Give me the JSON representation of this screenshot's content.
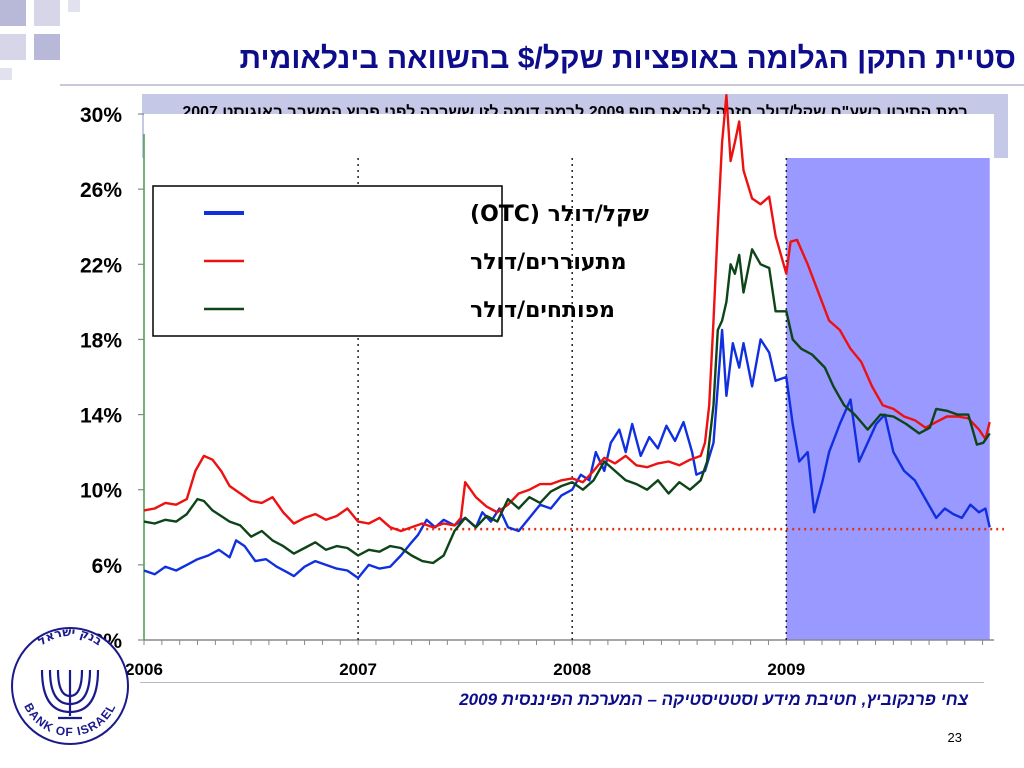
{
  "slide": {
    "title": "סטיית התקן הגלומה באופציות שקל/$ בהשוואה בינלאומית",
    "subtitle": "רמת הסיכון בשע\"ח שקל/דולר חזרה לקראת סוף 2009 לרמה דומה לזו ששררה לפני פרוץ המשבר באוגוסט 2007",
    "footer": "צחי פרנקוביץ, חטיבת מידע וסטטיסטיקה – המערכת הפיננסית 2009",
    "page_number": "23",
    "logo": {
      "text": "BANK OF ISRAEL",
      "text_he": "בנק ישראל",
      "icon": "menorah-icon"
    }
  },
  "colors": {
    "title": "#0d0d8c",
    "subtitle_bg": "#c6c8e8",
    "highlight": "#9999ff",
    "shekel_dollar": "#1030e0",
    "emerging": "#ee1111",
    "developed": "#0d4418",
    "reference_line": "#dd3311"
  },
  "chart_data": {
    "type": "line",
    "xlabel": "",
    "ylabel": "",
    "x_ticks": [
      "2006",
      "2007",
      "2008",
      "2009"
    ],
    "y_ticks": [
      "2%",
      "6%",
      "10%",
      "14%",
      "18%",
      "22%",
      "26%",
      "30%"
    ],
    "ylim": [
      2,
      30
    ],
    "xlim": [
      2006.0,
      2009.97
    ],
    "y_unit": "%",
    "grid": false,
    "vertical_markers": [
      2007.0,
      2008.0,
      2009.0
    ],
    "highlight_region": [
      2009.0,
      2009.95
    ],
    "reference_line": {
      "y": 7.9,
      "from_x": 2007.15,
      "style": "dotted"
    },
    "legend": {
      "position": "top-left"
    },
    "series": [
      {
        "name": "שקל/דולר (OTC)",
        "color": "#1030e0",
        "points": [
          [
            2006.0,
            5.7
          ],
          [
            2006.05,
            5.5
          ],
          [
            2006.1,
            5.9
          ],
          [
            2006.15,
            5.7
          ],
          [
            2006.2,
            6.0
          ],
          [
            2006.25,
            6.3
          ],
          [
            2006.3,
            6.5
          ],
          [
            2006.35,
            6.8
          ],
          [
            2006.4,
            6.4
          ],
          [
            2006.43,
            7.3
          ],
          [
            2006.47,
            7.0
          ],
          [
            2006.52,
            6.2
          ],
          [
            2006.57,
            6.3
          ],
          [
            2006.62,
            5.9
          ],
          [
            2006.67,
            5.6
          ],
          [
            2006.7,
            5.4
          ],
          [
            2006.75,
            5.9
          ],
          [
            2006.8,
            6.2
          ],
          [
            2006.85,
            6.0
          ],
          [
            2006.9,
            5.8
          ],
          [
            2006.95,
            5.7
          ],
          [
            2007.0,
            5.3
          ],
          [
            2007.05,
            6.0
          ],
          [
            2007.1,
            5.8
          ],
          [
            2007.15,
            5.9
          ],
          [
            2007.2,
            6.5
          ],
          [
            2007.25,
            7.2
          ],
          [
            2007.28,
            7.6
          ],
          [
            2007.32,
            8.4
          ],
          [
            2007.36,
            8.0
          ],
          [
            2007.4,
            8.4
          ],
          [
            2007.45,
            8.1
          ],
          [
            2007.5,
            8.5
          ],
          [
            2007.55,
            8.0
          ],
          [
            2007.58,
            8.8
          ],
          [
            2007.62,
            8.3
          ],
          [
            2007.66,
            9.0
          ],
          [
            2007.7,
            8.0
          ],
          [
            2007.75,
            7.8
          ],
          [
            2007.8,
            8.5
          ],
          [
            2007.85,
            9.2
          ],
          [
            2007.9,
            9.0
          ],
          [
            2007.95,
            9.7
          ],
          [
            2008.0,
            10.0
          ],
          [
            2008.04,
            10.8
          ],
          [
            2008.08,
            10.5
          ],
          [
            2008.11,
            12.0
          ],
          [
            2008.15,
            11.0
          ],
          [
            2008.18,
            12.5
          ],
          [
            2008.22,
            13.2
          ],
          [
            2008.25,
            12.0
          ],
          [
            2008.28,
            13.5
          ],
          [
            2008.32,
            11.8
          ],
          [
            2008.36,
            12.8
          ],
          [
            2008.4,
            12.2
          ],
          [
            2008.44,
            13.4
          ],
          [
            2008.48,
            12.6
          ],
          [
            2008.52,
            13.6
          ],
          [
            2008.56,
            12.0
          ],
          [
            2008.58,
            10.8
          ],
          [
            2008.62,
            11.0
          ],
          [
            2008.66,
            12.5
          ],
          [
            2008.68,
            15.5
          ],
          [
            2008.7,
            18.5
          ],
          [
            2008.72,
            15.0
          ],
          [
            2008.75,
            17.8
          ],
          [
            2008.78,
            16.5
          ],
          [
            2008.8,
            17.8
          ],
          [
            2008.84,
            15.5
          ],
          [
            2008.88,
            18.0
          ],
          [
            2008.92,
            17.3
          ],
          [
            2008.95,
            15.8
          ],
          [
            2009.0,
            16.0
          ],
          [
            2009.03,
            13.5
          ],
          [
            2009.06,
            11.5
          ],
          [
            2009.1,
            12.0
          ],
          [
            2009.13,
            8.8
          ],
          [
            2009.17,
            10.5
          ],
          [
            2009.2,
            12.0
          ],
          [
            2009.25,
            13.5
          ],
          [
            2009.3,
            14.8
          ],
          [
            2009.34,
            11.5
          ],
          [
            2009.38,
            12.5
          ],
          [
            2009.42,
            13.5
          ],
          [
            2009.46,
            14.0
          ],
          [
            2009.5,
            12.0
          ],
          [
            2009.55,
            11.0
          ],
          [
            2009.6,
            10.5
          ],
          [
            2009.65,
            9.5
          ],
          [
            2009.7,
            8.5
          ],
          [
            2009.74,
            9.0
          ],
          [
            2009.78,
            8.7
          ],
          [
            2009.82,
            8.5
          ],
          [
            2009.86,
            9.2
          ],
          [
            2009.9,
            8.8
          ],
          [
            2009.93,
            9.0
          ],
          [
            2009.95,
            8.0
          ]
        ]
      },
      {
        "name": "מתעוררים/דולר",
        "color": "#ee1111",
        "points": [
          [
            2006.0,
            8.9
          ],
          [
            2006.05,
            9.0
          ],
          [
            2006.1,
            9.3
          ],
          [
            2006.15,
            9.2
          ],
          [
            2006.2,
            9.5
          ],
          [
            2006.24,
            11.0
          ],
          [
            2006.28,
            11.8
          ],
          [
            2006.32,
            11.6
          ],
          [
            2006.36,
            11.0
          ],
          [
            2006.4,
            10.2
          ],
          [
            2006.45,
            9.8
          ],
          [
            2006.5,
            9.4
          ],
          [
            2006.55,
            9.3
          ],
          [
            2006.6,
            9.6
          ],
          [
            2006.65,
            8.8
          ],
          [
            2006.7,
            8.2
          ],
          [
            2006.75,
            8.5
          ],
          [
            2006.8,
            8.7
          ],
          [
            2006.85,
            8.4
          ],
          [
            2006.9,
            8.6
          ],
          [
            2006.95,
            9.0
          ],
          [
            2007.0,
            8.3
          ],
          [
            2007.05,
            8.2
          ],
          [
            2007.1,
            8.5
          ],
          [
            2007.15,
            8.0
          ],
          [
            2007.2,
            7.8
          ],
          [
            2007.25,
            8.0
          ],
          [
            2007.3,
            8.2
          ],
          [
            2007.35,
            8.0
          ],
          [
            2007.4,
            8.2
          ],
          [
            2007.45,
            8.1
          ],
          [
            2007.48,
            8.5
          ],
          [
            2007.5,
            10.4
          ],
          [
            2007.55,
            9.6
          ],
          [
            2007.6,
            9.1
          ],
          [
            2007.65,
            8.8
          ],
          [
            2007.7,
            9.2
          ],
          [
            2007.75,
            9.8
          ],
          [
            2007.8,
            10.0
          ],
          [
            2007.85,
            10.3
          ],
          [
            2007.9,
            10.3
          ],
          [
            2007.95,
            10.5
          ],
          [
            2008.0,
            10.6
          ],
          [
            2008.05,
            10.4
          ],
          [
            2008.1,
            11.0
          ],
          [
            2008.15,
            11.7
          ],
          [
            2008.2,
            11.4
          ],
          [
            2008.25,
            11.8
          ],
          [
            2008.3,
            11.3
          ],
          [
            2008.35,
            11.2
          ],
          [
            2008.4,
            11.4
          ],
          [
            2008.45,
            11.5
          ],
          [
            2008.5,
            11.3
          ],
          [
            2008.55,
            11.6
          ],
          [
            2008.6,
            11.8
          ],
          [
            2008.62,
            12.5
          ],
          [
            2008.64,
            14.5
          ],
          [
            2008.66,
            19.0
          ],
          [
            2008.68,
            24.0
          ],
          [
            2008.7,
            28.5
          ],
          [
            2008.72,
            31.0
          ],
          [
            2008.74,
            27.5
          ],
          [
            2008.76,
            28.5
          ],
          [
            2008.78,
            29.6
          ],
          [
            2008.8,
            27.0
          ],
          [
            2008.84,
            25.5
          ],
          [
            2008.88,
            25.2
          ],
          [
            2008.92,
            25.6
          ],
          [
            2008.95,
            23.5
          ],
          [
            2009.0,
            21.5
          ],
          [
            2009.02,
            23.2
          ],
          [
            2009.05,
            23.3
          ],
          [
            2009.1,
            22.0
          ],
          [
            2009.15,
            20.5
          ],
          [
            2009.2,
            19.0
          ],
          [
            2009.25,
            18.5
          ],
          [
            2009.3,
            17.5
          ],
          [
            2009.35,
            16.8
          ],
          [
            2009.4,
            15.5
          ],
          [
            2009.45,
            14.5
          ],
          [
            2009.5,
            14.3
          ],
          [
            2009.55,
            13.9
          ],
          [
            2009.6,
            13.7
          ],
          [
            2009.65,
            13.3
          ],
          [
            2009.7,
            13.6
          ],
          [
            2009.75,
            13.9
          ],
          [
            2009.8,
            13.9
          ],
          [
            2009.85,
            13.8
          ],
          [
            2009.9,
            13.2
          ],
          [
            2009.93,
            12.7
          ],
          [
            2009.95,
            13.6
          ]
        ]
      },
      {
        "name": "מפותחים/דולר",
        "color": "#0d4418",
        "points": [
          [
            2006.0,
            8.3
          ],
          [
            2006.05,
            8.2
          ],
          [
            2006.1,
            8.4
          ],
          [
            2006.15,
            8.3
          ],
          [
            2006.2,
            8.7
          ],
          [
            2006.25,
            9.5
          ],
          [
            2006.28,
            9.4
          ],
          [
            2006.32,
            8.9
          ],
          [
            2006.36,
            8.6
          ],
          [
            2006.4,
            8.3
          ],
          [
            2006.45,
            8.1
          ],
          [
            2006.5,
            7.5
          ],
          [
            2006.55,
            7.8
          ],
          [
            2006.6,
            7.3
          ],
          [
            2006.65,
            7.0
          ],
          [
            2006.7,
            6.6
          ],
          [
            2006.75,
            6.9
          ],
          [
            2006.8,
            7.2
          ],
          [
            2006.85,
            6.8
          ],
          [
            2006.9,
            7.0
          ],
          [
            2006.95,
            6.9
          ],
          [
            2007.0,
            6.5
          ],
          [
            2007.05,
            6.8
          ],
          [
            2007.1,
            6.7
          ],
          [
            2007.15,
            7.0
          ],
          [
            2007.2,
            6.9
          ],
          [
            2007.25,
            6.5
          ],
          [
            2007.3,
            6.2
          ],
          [
            2007.35,
            6.1
          ],
          [
            2007.4,
            6.5
          ],
          [
            2007.45,
            7.8
          ],
          [
            2007.5,
            8.5
          ],
          [
            2007.55,
            8.0
          ],
          [
            2007.6,
            8.6
          ],
          [
            2007.65,
            8.3
          ],
          [
            2007.7,
            9.5
          ],
          [
            2007.75,
            9.0
          ],
          [
            2007.8,
            9.6
          ],
          [
            2007.85,
            9.3
          ],
          [
            2007.9,
            9.9
          ],
          [
            2007.95,
            10.2
          ],
          [
            2008.0,
            10.4
          ],
          [
            2008.05,
            10.0
          ],
          [
            2008.1,
            10.5
          ],
          [
            2008.15,
            11.5
          ],
          [
            2008.2,
            11.0
          ],
          [
            2008.25,
            10.5
          ],
          [
            2008.3,
            10.3
          ],
          [
            2008.35,
            10.0
          ],
          [
            2008.4,
            10.5
          ],
          [
            2008.45,
            9.8
          ],
          [
            2008.5,
            10.4
          ],
          [
            2008.55,
            10.0
          ],
          [
            2008.6,
            10.5
          ],
          [
            2008.63,
            11.5
          ],
          [
            2008.66,
            14.5
          ],
          [
            2008.68,
            18.5
          ],
          [
            2008.7,
            19.0
          ],
          [
            2008.72,
            20.0
          ],
          [
            2008.74,
            22.0
          ],
          [
            2008.76,
            21.5
          ],
          [
            2008.78,
            22.5
          ],
          [
            2008.8,
            20.5
          ],
          [
            2008.84,
            22.8
          ],
          [
            2008.88,
            22.0
          ],
          [
            2008.92,
            21.8
          ],
          [
            2008.95,
            19.5
          ],
          [
            2009.0,
            19.5
          ],
          [
            2009.03,
            18.0
          ],
          [
            2009.07,
            17.5
          ],
          [
            2009.12,
            17.2
          ],
          [
            2009.18,
            16.5
          ],
          [
            2009.22,
            15.5
          ],
          [
            2009.27,
            14.5
          ],
          [
            2009.32,
            14.0
          ],
          [
            2009.38,
            13.2
          ],
          [
            2009.44,
            14.0
          ],
          [
            2009.5,
            13.9
          ],
          [
            2009.56,
            13.5
          ],
          [
            2009.62,
            13.0
          ],
          [
            2009.67,
            13.3
          ],
          [
            2009.7,
            14.3
          ],
          [
            2009.75,
            14.2
          ],
          [
            2009.8,
            14.0
          ],
          [
            2009.85,
            14.0
          ],
          [
            2009.89,
            12.4
          ],
          [
            2009.92,
            12.5
          ],
          [
            2009.95,
            13.0
          ]
        ]
      }
    ]
  }
}
